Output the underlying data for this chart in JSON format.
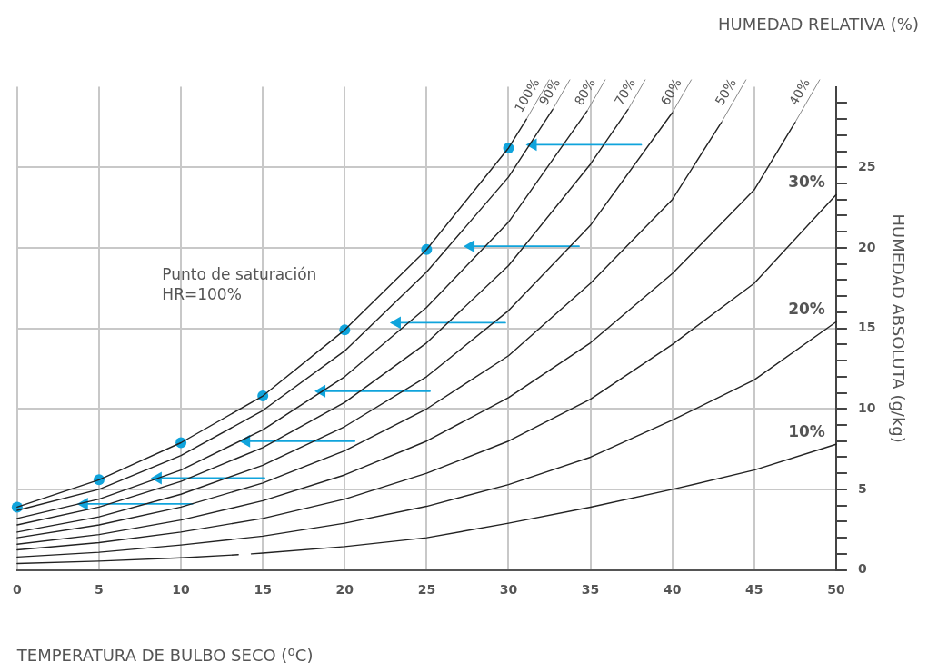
{
  "chart_data": {
    "type": "line",
    "title": "HUMEDAD RELATIVA (%)",
    "xlabel": "TEMPERATURA DE BULBO SECO (ºC)",
    "ylabel": "HUMEDAD ABSOLUTA (g/kg)",
    "annotations": [
      "Punto de saturación\nHR=100%"
    ],
    "xlim": [
      0,
      50
    ],
    "xticks": [
      0,
      5,
      10,
      15,
      20,
      25,
      30,
      35,
      40,
      45,
      50
    ],
    "ylim": [
      0,
      30
    ],
    "yticks": [
      0,
      {
        "value": 1,
        "label": null
      },
      {
        "value": 2,
        "label": null
      },
      {
        "value": 3,
        "label": null
      },
      {
        "value": 4,
        "label": null
      },
      5,
      {
        "value": 6,
        "label": null
      },
      {
        "value": 7,
        "label": null
      },
      {
        "value": 8,
        "label": null
      },
      {
        "value": 9,
        "label": null
      },
      10,
      {
        "value": 11,
        "label": null
      },
      {
        "value": 12,
        "label": null
      },
      {
        "value": 13,
        "label": null
      },
      {
        "value": 14,
        "label": null
      },
      15,
      {
        "value": 16,
        "label": null
      },
      {
        "value": 17,
        "label": null
      },
      {
        "value": 18,
        "label": null
      },
      {
        "value": 19,
        "label": null
      },
      20,
      {
        "value": 21,
        "label": null
      },
      {
        "value": 22,
        "label": null
      },
      {
        "value": 23,
        "label": null
      },
      {
        "value": 24,
        "label": null
      },
      25,
      {
        "value": 26,
        "label": null
      },
      {
        "value": 27,
        "label": null
      },
      {
        "value": 28,
        "label": null
      },
      {
        "value": 29,
        "label": null
      }
    ],
    "grid": true,
    "marker": "none",
    "line_style": "solid",
    "series": [
      {
        "name": "100%",
        "color": "#222222",
        "x": [
          0,
          5,
          10,
          15,
          20,
          25,
          30,
          31.1
        ],
        "values": [
          3.9,
          5.6,
          7.9,
          10.8,
          14.9,
          19.9,
          26.2,
          28.0
        ]
      },
      {
        "name": "90%",
        "color": "#222222",
        "x": [
          0,
          5,
          10,
          15,
          20,
          25,
          30,
          32.7
        ],
        "values": [
          3.7,
          5.0,
          7.1,
          9.9,
          13.6,
          18.5,
          24.4,
          28.6
        ]
      },
      {
        "name": "80%",
        "color": "#222222",
        "x": [
          0,
          5,
          10,
          15,
          20,
          25,
          30,
          34.8
        ],
        "values": [
          3.2,
          4.4,
          6.2,
          8.7,
          12.0,
          16.3,
          21.6,
          28.5
        ]
      },
      {
        "name": "70%",
        "color": "#222222",
        "x": [
          0,
          5,
          10,
          15,
          20,
          25,
          30,
          35,
          37.3
        ],
        "values": [
          2.8,
          3.9,
          5.5,
          7.6,
          10.4,
          14.1,
          18.9,
          25.2,
          28.6
        ]
      },
      {
        "name": "60%",
        "color": "#222222",
        "x": [
          0,
          5,
          10,
          15,
          20,
          25,
          30,
          35,
          40
        ],
        "values": [
          2.35,
          3.3,
          4.7,
          6.5,
          8.9,
          12.0,
          16.1,
          21.4,
          28.4
        ]
      },
      {
        "name": "50%",
        "color": "#222222",
        "x": [
          0,
          5,
          10,
          15,
          20,
          25,
          30,
          35,
          40,
          43
        ],
        "values": [
          2.0,
          2.8,
          3.9,
          5.4,
          7.4,
          10.0,
          13.3,
          17.8,
          23.0,
          27.8
        ]
      },
      {
        "name": "40%",
        "color": "#222222",
        "x": [
          0,
          5,
          10,
          15,
          20,
          25,
          30,
          35,
          40,
          45,
          47.5
        ],
        "values": [
          1.6,
          2.2,
          3.1,
          4.3,
          5.9,
          8.0,
          10.7,
          14.1,
          18.4,
          23.6,
          27.8
        ]
      },
      {
        "name": "30%",
        "color": "#222222",
        "x": [
          0,
          5,
          10,
          15,
          20,
          25,
          30,
          35,
          40,
          45,
          50
        ],
        "values": [
          1.25,
          1.7,
          2.35,
          3.2,
          4.4,
          6.0,
          8.0,
          10.6,
          14.0,
          17.8,
          23.3
        ]
      },
      {
        "name": "20%",
        "color": "#222222",
        "x": [
          0,
          5,
          10,
          15,
          20,
          25,
          30,
          35,
          40,
          45,
          50
        ],
        "values": [
          0.8,
          1.1,
          1.55,
          2.1,
          2.9,
          3.95,
          5.3,
          7.0,
          9.3,
          11.8,
          15.4
        ]
      },
      {
        "name": "10%",
        "color": "#222222",
        "x": [
          0,
          5,
          10,
          13.5,
          13.9,
          14.3,
          15,
          20,
          25,
          30,
          35,
          40,
          45,
          50
        ],
        "values": [
          0.4,
          0.55,
          0.75,
          0.95,
          null,
          1.0,
          1.05,
          1.45,
          2.0,
          2.9,
          3.9,
          5.0,
          6.2,
          7.8
        ]
      },
      {
        "type": "scatter",
        "color": "#10a4dc",
        "marker": "circle",
        "x": [
          0,
          5,
          10,
          15,
          20,
          25,
          30
        ],
        "values": [
          3.9,
          5.6,
          7.9,
          10.8,
          14.9,
          19.9,
          26.2
        ]
      },
      {
        "color": "#10a4dc",
        "marker": "triangle",
        "x": [
          31.5,
          38.1
        ],
        "values": [
          26.4,
          26.4
        ]
      },
      {
        "color": "#10a4dc",
        "marker": "triangle",
        "x": [
          27.7,
          34.3
        ],
        "values": [
          20.1,
          20.1
        ]
      },
      {
        "color": "#10a4dc",
        "marker": "triangle",
        "x": [
          23.2,
          29.8
        ],
        "values": [
          15.35,
          15.35
        ]
      },
      {
        "color": "#10a4dc",
        "marker": "triangle",
        "x": [
          18.6,
          25.2
        ],
        "values": [
          11.1,
          11.1
        ]
      },
      {
        "color": "#10a4dc",
        "marker": "triangle",
        "x": [
          14.0,
          20.6
        ],
        "values": [
          8.0,
          8.0
        ]
      },
      {
        "color": "#10a4dc",
        "marker": "triangle",
        "x": [
          8.6,
          15.1
        ],
        "values": [
          5.7,
          5.7
        ]
      },
      {
        "color": "#10a4dc",
        "marker": "triangle",
        "x": [
          4.1,
          10.7
        ],
        "values": [
          4.1,
          4.1
        ]
      }
    ]
  }
}
